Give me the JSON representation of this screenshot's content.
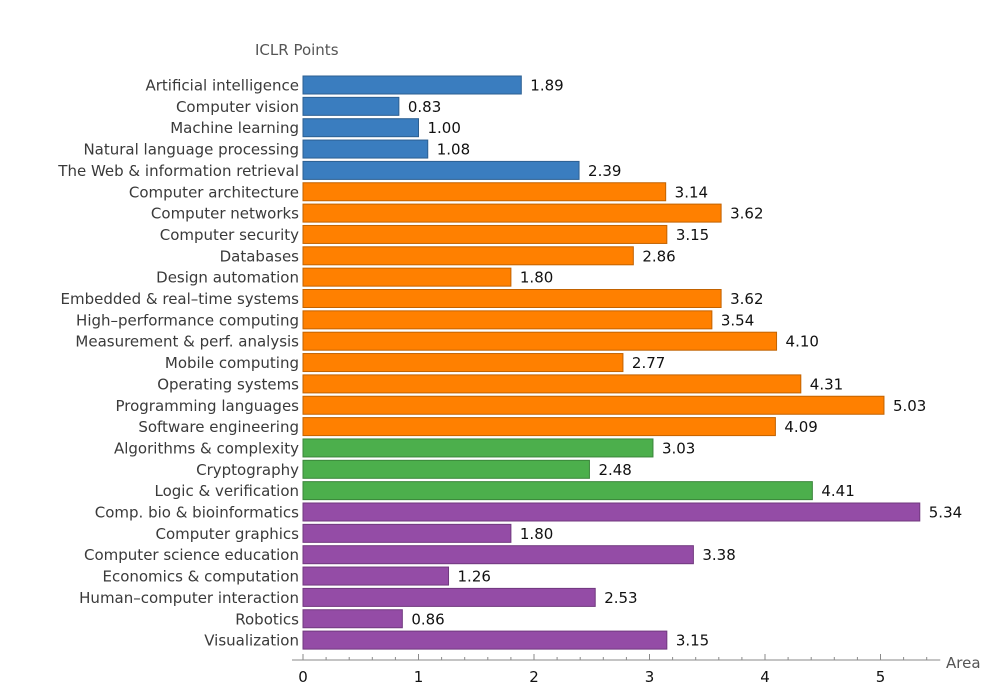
{
  "chart_data": {
    "type": "bar",
    "orientation": "horizontal",
    "title": "",
    "ylabel": "ICLR Points",
    "xlabel": "Area",
    "xlim": [
      0,
      5.5
    ],
    "xticks": [
      0,
      1,
      2,
      3,
      4,
      5
    ],
    "categories": [
      "Artificial intelligence",
      "Computer vision",
      "Machine learning",
      "Natural language processing",
      "The Web & information retrieval",
      "Computer architecture",
      "Computer networks",
      "Computer security",
      "Databases",
      "Design automation",
      "Embedded & real–time systems",
      "High–performance computing",
      "Measurement & perf. analysis",
      "Mobile computing",
      "Operating systems",
      "Programming languages",
      "Software engineering",
      "Algorithms & complexity",
      "Cryptography",
      "Logic & verification",
      "Comp. bio & bioinformatics",
      "Computer graphics",
      "Computer science education",
      "Economics & computation",
      "Human–computer interaction",
      "Robotics",
      "Visualization"
    ],
    "values": [
      1.89,
      0.83,
      1.0,
      1.08,
      2.39,
      3.14,
      3.62,
      3.15,
      2.86,
      1.8,
      3.62,
      3.54,
      4.1,
      2.77,
      4.31,
      5.03,
      4.09,
      3.03,
      2.48,
      4.41,
      5.34,
      1.8,
      3.38,
      1.26,
      2.53,
      0.86,
      3.15
    ],
    "value_labels": [
      "1.89",
      "0.83",
      "1.00",
      "1.08",
      "2.39",
      "3.14",
      "3.62",
      "3.15",
      "2.86",
      "1.80",
      "3.62",
      "3.54",
      "4.10",
      "2.77",
      "4.31",
      "5.03",
      "4.09",
      "3.03",
      "2.48",
      "4.41",
      "5.34",
      "1.80",
      "3.38",
      "1.26",
      "2.53",
      "0.86",
      "3.15"
    ],
    "groups": [
      "ai",
      "ai",
      "ai",
      "ai",
      "ai",
      "systems",
      "systems",
      "systems",
      "systems",
      "systems",
      "systems",
      "systems",
      "systems",
      "systems",
      "systems",
      "systems",
      "systems",
      "theory",
      "theory",
      "theory",
      "interdisciplinary",
      "interdisciplinary",
      "interdisciplinary",
      "interdisciplinary",
      "interdisciplinary",
      "interdisciplinary",
      "interdisciplinary"
    ],
    "group_colors": {
      "ai": "#3a7dbf",
      "systems": "#ff8000",
      "theory": "#4caf4c",
      "interdisciplinary": "#944ca6"
    },
    "group_stroke_colors": {
      "ai": "#2c5f91",
      "systems": "#c26200",
      "theory": "#3a853a",
      "interdisciplinary": "#70397e"
    },
    "grid": false,
    "legend": "none"
  }
}
